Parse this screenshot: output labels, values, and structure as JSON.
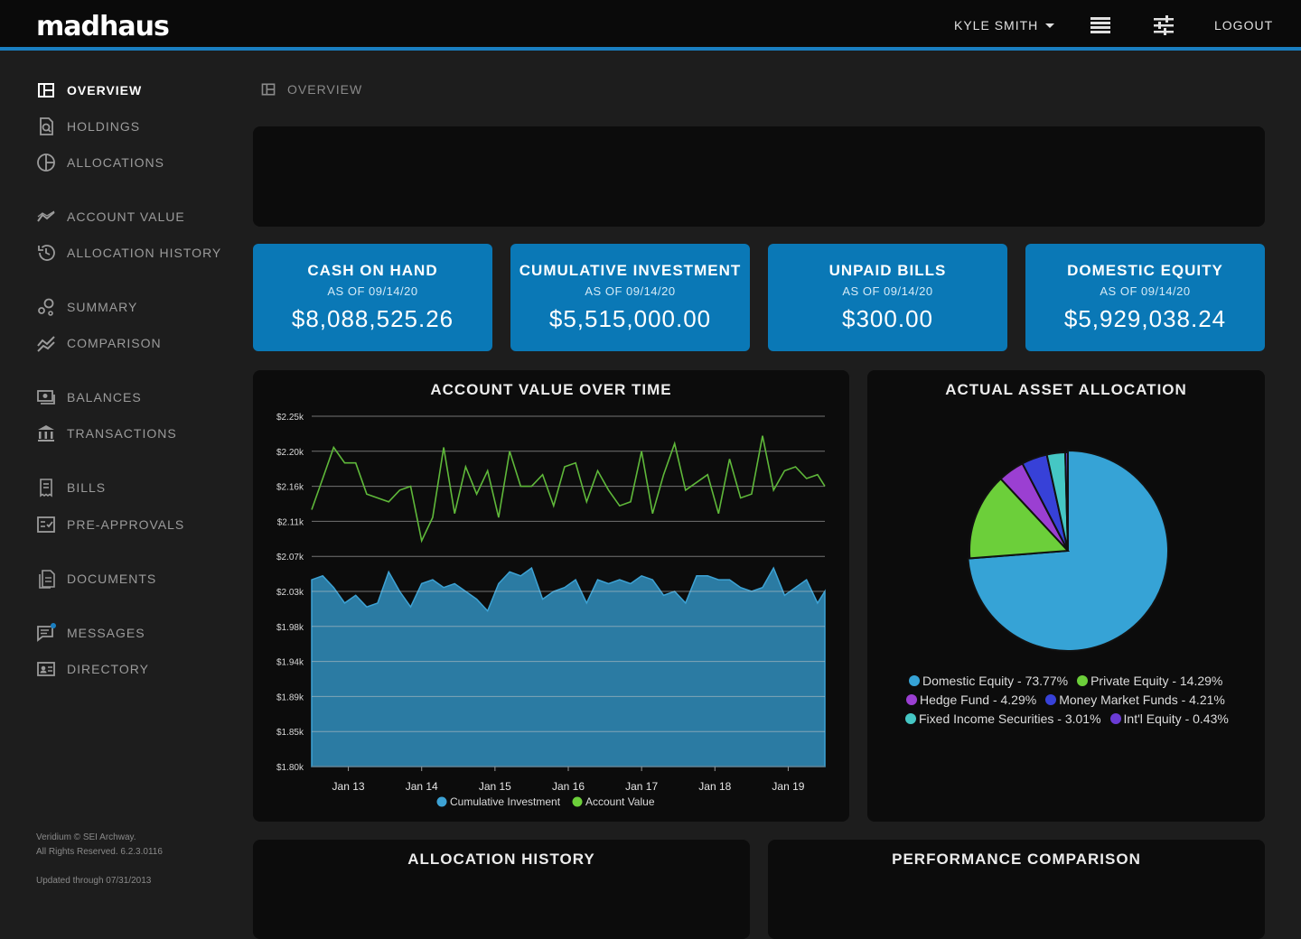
{
  "header": {
    "logo": "madhaus",
    "user_name": "KYLE SMITH",
    "logout_label": "LOGOUT"
  },
  "sidebar": {
    "items": [
      {
        "label": "OVERVIEW",
        "icon": "overview-icon",
        "active": true
      },
      {
        "label": "HOLDINGS",
        "icon": "holdings-icon"
      },
      {
        "label": "ALLOCATIONS",
        "icon": "allocations-icon"
      },
      {
        "label": "ACCOUNT VALUE",
        "icon": "account-value-icon"
      },
      {
        "label": "ALLOCATION HISTORY",
        "icon": "history-icon"
      },
      {
        "label": "SUMMARY",
        "icon": "summary-icon"
      },
      {
        "label": "COMPARISON",
        "icon": "comparison-icon"
      },
      {
        "label": "BALANCES",
        "icon": "balances-icon"
      },
      {
        "label": "TRANSACTIONS",
        "icon": "transactions-icon"
      },
      {
        "label": "BILLS",
        "icon": "bills-icon"
      },
      {
        "label": "PRE-APPROVALS",
        "icon": "pre-approvals-icon"
      },
      {
        "label": "DOCUMENTS",
        "icon": "documents-icon"
      },
      {
        "label": "MESSAGES",
        "icon": "messages-icon"
      },
      {
        "label": "DIRECTORY",
        "icon": "directory-icon"
      }
    ],
    "footer_line1": "Veridium © SEI Archway.",
    "footer_line2": "All Rights Reserved. 6.2.3.0116",
    "footer_updated": "Updated through 07/31/2013"
  },
  "breadcrumb": {
    "label": "OVERVIEW"
  },
  "cards": [
    {
      "title": "CASH ON HAND",
      "as_of": "AS OF 09/14/20",
      "value": "$8,088,525.26"
    },
    {
      "title": "CUMULATIVE INVESTMENT",
      "as_of": "AS OF 09/14/20",
      "value": "$5,515,000.00"
    },
    {
      "title": "UNPAID BILLS",
      "as_of": "AS OF 09/14/20",
      "value": "$300.00"
    },
    {
      "title": "DOMESTIC EQUITY",
      "as_of": "AS OF 09/14/20",
      "value": "$5,929,038.24"
    }
  ],
  "panels": {
    "account_value_title": "ACCOUNT VALUE OVER TIME",
    "allocation_title": "ACTUAL ASSET ALLOCATION",
    "allocation_history_title": "ALLOCATION HISTORY",
    "performance_title": "PERFORMANCE COMPARISON"
  },
  "colors": {
    "accent": "#1a7fc1",
    "card": "#0a78b6",
    "account_value_line": "#5fb83a",
    "cumulative_fill": "#2b7ba3"
  },
  "chart_data": [
    {
      "type": "area",
      "title": "ACCOUNT VALUE OVER TIME",
      "y_ticks": [
        "$2.25k",
        "$2.20k",
        "$2.16k",
        "$2.11k",
        "$2.07k",
        "$2.03k",
        "$1.98k",
        "$1.94k",
        "$1.89k",
        "$1.85k",
        "$1.80k"
      ],
      "ylim": [
        1.8,
        2.25
      ],
      "x_ticks": [
        "Jan 13",
        "Jan 14",
        "Jan 15",
        "Jan 16",
        "Jan 17",
        "Jan 18",
        "Jan 19"
      ],
      "xlim": [
        12.5,
        19.5
      ],
      "grid": true,
      "series": [
        {
          "name": "Cumulative Investment",
          "color": "#3da2d4",
          "style": "area",
          "x": [
            12.5,
            12.65,
            12.8,
            12.95,
            13.1,
            13.25,
            13.4,
            13.55,
            13.7,
            13.85,
            14.0,
            14.15,
            14.3,
            14.45,
            14.6,
            14.75,
            14.9,
            15.05,
            15.2,
            15.35,
            15.5,
            15.65,
            15.8,
            15.95,
            16.1,
            16.25,
            16.4,
            16.55,
            16.7,
            16.85,
            17.0,
            17.15,
            17.3,
            17.45,
            17.6,
            17.75,
            17.9,
            18.05,
            18.2,
            18.35,
            18.5,
            18.65,
            18.8,
            18.95,
            19.1,
            19.25,
            19.4,
            19.5
          ],
          "y": [
            2.04,
            2.045,
            2.03,
            2.01,
            2.02,
            2.005,
            2.01,
            2.05,
            2.025,
            2.005,
            2.035,
            2.04,
            2.03,
            2.035,
            2.025,
            2.015,
            2.0,
            2.035,
            2.05,
            2.045,
            2.055,
            2.015,
            2.025,
            2.03,
            2.04,
            2.01,
            2.04,
            2.035,
            2.04,
            2.035,
            2.045,
            2.04,
            2.02,
            2.025,
            2.01,
            2.045,
            2.045,
            2.04,
            2.04,
            2.03,
            2.025,
            2.03,
            2.055,
            2.02,
            2.03,
            2.04,
            2.01,
            2.025
          ]
        },
        {
          "name": "Account Value",
          "color": "#5fb83a",
          "style": "line",
          "x": [
            12.5,
            12.65,
            12.8,
            12.95,
            13.1,
            13.25,
            13.4,
            13.55,
            13.7,
            13.85,
            14.0,
            14.15,
            14.3,
            14.45,
            14.6,
            14.75,
            14.9,
            15.05,
            15.2,
            15.35,
            15.5,
            15.65,
            15.8,
            15.95,
            16.1,
            16.25,
            16.4,
            16.55,
            16.7,
            16.85,
            17.0,
            17.15,
            17.3,
            17.45,
            17.6,
            17.75,
            17.9,
            18.05,
            18.2,
            18.35,
            18.5,
            18.65,
            18.8,
            18.95,
            19.1,
            19.25,
            19.4,
            19.5
          ],
          "y": [
            2.13,
            2.17,
            2.21,
            2.19,
            2.19,
            2.15,
            2.145,
            2.14,
            2.155,
            2.16,
            2.09,
            2.12,
            2.21,
            2.125,
            2.185,
            2.15,
            2.18,
            2.12,
            2.205,
            2.16,
            2.16,
            2.175,
            2.135,
            2.185,
            2.19,
            2.14,
            2.18,
            2.155,
            2.135,
            2.14,
            2.205,
            2.125,
            2.175,
            2.215,
            2.155,
            2.165,
            2.175,
            2.125,
            2.195,
            2.145,
            2.15,
            2.225,
            2.155,
            2.18,
            2.185,
            2.17,
            2.175,
            2.16
          ]
        }
      ]
    },
    {
      "type": "pie",
      "title": "ACTUAL ASSET ALLOCATION",
      "slices": [
        {
          "label": "Domestic Equity - 73.77%",
          "value": 73.77,
          "color": "#36a3d6"
        },
        {
          "label": "Private Equity - 14.29%",
          "value": 14.29,
          "color": "#6ccf3a"
        },
        {
          "label": "Hedge Fund - 4.29%",
          "value": 4.29,
          "color": "#9b3fd2"
        },
        {
          "label": "Money Market Funds - 4.21%",
          "value": 4.21,
          "color": "#3741d8"
        },
        {
          "label": "Fixed Income Securities - 3.01%",
          "value": 3.01,
          "color": "#45c7c4"
        },
        {
          "label": "Int'l Equity - 0.43%",
          "value": 0.43,
          "color": "#6a3bd4"
        }
      ]
    }
  ]
}
